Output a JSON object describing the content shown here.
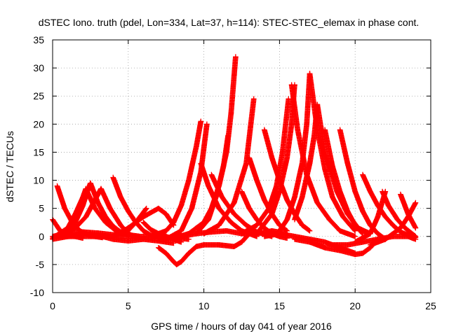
{
  "chart_data": {
    "type": "scatter",
    "title": "dSTEC Iono. truth (pdel, Lon=334, Lat=37, h=114): STEC-STEC_elemax in phase cont.",
    "xlabel": "GPS time / hours of day 041 of year 2016",
    "ylabel": "dSTEC  / TECUs",
    "xlim": [
      0,
      25
    ],
    "ylim": [
      -10,
      35
    ],
    "xticks": [
      0,
      5,
      10,
      15,
      20,
      25
    ],
    "yticks": [
      -10,
      -5,
      0,
      5,
      10,
      15,
      20,
      25,
      30,
      35
    ],
    "xtick_labels": [
      "0",
      "5",
      "10",
      "15",
      "20",
      "25"
    ],
    "ytick_labels": [
      "-10",
      "-5",
      "0",
      "5",
      "10",
      "15",
      "20",
      "25",
      "30",
      "35"
    ],
    "grid": true,
    "marker": "+",
    "color": "#ff0000",
    "series": [
      {
        "x": [
          0.0,
          0.5,
          1.0,
          1.5,
          2.0
        ],
        "y": [
          3.0,
          1.0,
          0.3,
          0.0,
          -0.3
        ]
      },
      {
        "x": [
          0.3,
          0.8,
          1.3,
          1.8,
          2.3,
          2.8,
          3.3
        ],
        "y": [
          9.0,
          5.0,
          2.5,
          1.0,
          0.3,
          0.0,
          -0.2
        ]
      },
      {
        "x": [
          0.0,
          0.8,
          1.5,
          2.0,
          2.3,
          2.5
        ],
        "y": [
          0.0,
          0.5,
          2.5,
          5.5,
          8.0,
          9.5
        ]
      },
      {
        "x": [
          2.5,
          3.0,
          3.5,
          4.0,
          4.5,
          5.0
        ],
        "y": [
          9.5,
          6.0,
          3.5,
          1.8,
          0.8,
          0.2
        ]
      },
      {
        "x": [
          0.0,
          1.0,
          1.5,
          2.0,
          2.2
        ],
        "y": [
          -0.3,
          1.5,
          4.0,
          7.0,
          8.5
        ]
      },
      {
        "x": [
          2.2,
          2.8,
          3.5,
          4.2,
          5.0,
          5.8
        ],
        "y": [
          8.5,
          5.0,
          2.5,
          1.0,
          0.3,
          0.0
        ]
      },
      {
        "x": [
          0.5,
          1.5,
          2.2,
          2.8,
          3.2
        ],
        "y": [
          0.0,
          1.5,
          3.5,
          6.5,
          8.5
        ]
      },
      {
        "x": [
          3.2,
          3.8,
          4.5,
          5.0,
          5.5
        ],
        "y": [
          8.5,
          5.0,
          2.0,
          0.5,
          -0.2
        ]
      },
      {
        "x": [
          4.0,
          4.5,
          5.0,
          5.5,
          6.0,
          6.5,
          7.0,
          7.5
        ],
        "y": [
          10.5,
          7.0,
          4.5,
          2.5,
          1.0,
          0.2,
          -0.2,
          -0.5
        ]
      },
      {
        "x": [
          1.0,
          2.0,
          3.0,
          4.0,
          4.8,
          5.5,
          6.2
        ],
        "y": [
          0.5,
          0.8,
          0.6,
          0.3,
          0.5,
          2.5,
          5.0
        ]
      },
      {
        "x": [
          0.0,
          1.0,
          2.0,
          3.0,
          4.0,
          5.0,
          6.0,
          7.0,
          8.0
        ],
        "y": [
          -0.5,
          0.0,
          0.5,
          0.2,
          -0.5,
          -0.8,
          -0.5,
          -0.8,
          -1.2
        ]
      },
      {
        "x": [
          4.0,
          5.0,
          6.0,
          7.0,
          7.5,
          8.0
        ],
        "y": [
          0.0,
          1.5,
          3.5,
          5.0,
          4.0,
          2.0
        ]
      },
      {
        "x": [
          6.0,
          6.5,
          7.0,
          7.5,
          8.0,
          8.5
        ],
        "y": [
          2.5,
          1.2,
          0.5,
          0.0,
          -0.5,
          -1.0
        ]
      },
      {
        "x": [
          7.0,
          7.5,
          8.0,
          8.2,
          8.5,
          9.0,
          9.5,
          10.0
        ],
        "y": [
          -2.0,
          -3.0,
          -4.5,
          -5.0,
          -4.5,
          -3.0,
          -1.8,
          -1.5
        ]
      },
      {
        "x": [
          10.0,
          11.0,
          12.0,
          12.5,
          13.0
        ],
        "y": [
          -1.5,
          -1.5,
          -1.8,
          -1.0,
          0.5
        ]
      },
      {
        "x": [
          6.5,
          7.5,
          8.0,
          8.5,
          9.0,
          9.5,
          9.8
        ],
        "y": [
          0.0,
          1.0,
          2.5,
          5.5,
          10.0,
          16.0,
          20.5
        ]
      },
      {
        "x": [
          7.5,
          8.5,
          9.2,
          9.8,
          10.2
        ],
        "y": [
          -0.5,
          1.0,
          5.0,
          11.5,
          20.0
        ]
      },
      {
        "x": [
          8.0,
          9.0,
          10.0,
          10.5,
          11.0,
          11.5,
          11.8,
          12.1
        ],
        "y": [
          -0.3,
          0.5,
          2.5,
          5.0,
          9.0,
          15.0,
          22.0,
          32.0
        ]
      },
      {
        "x": [
          9.5,
          10.3,
          10.8,
          11.3,
          11.6
        ],
        "y": [
          0.5,
          3.0,
          7.0,
          12.5,
          18.0
        ]
      },
      {
        "x": [
          10.0,
          11.0,
          12.0,
          12.8,
          13.3
        ],
        "y": [
          0.5,
          2.0,
          6.0,
          13.0,
          24.5
        ]
      },
      {
        "x": [
          9.8,
          10.3,
          11.0,
          11.8,
          12.5,
          13.5
        ],
        "y": [
          13.0,
          9.0,
          5.0,
          2.5,
          1.0,
          0.0
        ]
      },
      {
        "x": [
          10.5,
          11.2,
          12.0,
          12.8,
          13.5,
          14.5
        ],
        "y": [
          11.0,
          7.0,
          4.0,
          2.0,
          0.8,
          0.0
        ]
      },
      {
        "x": [
          8.5,
          9.5,
          10.5,
          11.5,
          12.5,
          13.5,
          14.5,
          15.5
        ],
        "y": [
          0.0,
          0.5,
          0.8,
          1.0,
          0.5,
          0.5,
          1.0,
          0.5
        ]
      },
      {
        "x": [
          12.5,
          13.0,
          13.5,
          14.0,
          14.5,
          15.0,
          15.5
        ],
        "y": [
          8.0,
          5.0,
          3.0,
          1.5,
          0.5,
          0.0,
          -0.3
        ]
      },
      {
        "x": [
          13.0,
          13.5,
          14.0,
          14.5,
          15.0,
          15.5
        ],
        "y": [
          14.0,
          10.0,
          6.5,
          4.0,
          2.0,
          1.0
        ]
      },
      {
        "x": [
          14.0,
          14.5,
          15.0,
          15.5,
          16.0,
          16.5,
          17.0
        ],
        "y": [
          19.0,
          14.0,
          10.0,
          6.5,
          4.0,
          2.0,
          1.0
        ]
      },
      {
        "x": [
          12.5,
          13.5,
          14.3,
          14.8,
          15.2,
          15.6
        ],
        "y": [
          0.5,
          2.0,
          5.0,
          9.0,
          15.0,
          24.5
        ]
      },
      {
        "x": [
          13.5,
          14.5,
          15.0,
          15.5,
          15.8,
          16.0
        ],
        "y": [
          0.5,
          4.0,
          8.0,
          14.0,
          20.0,
          27.0
        ]
      },
      {
        "x": [
          15.8,
          16.2,
          16.8,
          17.5,
          18.3,
          19.0,
          20.0
        ],
        "y": [
          27.0,
          19.0,
          11.0,
          6.0,
          3.0,
          1.0,
          0.0
        ]
      },
      {
        "x": [
          15.0,
          15.5,
          16.0,
          16.5,
          16.8,
          17.0
        ],
        "y": [
          1.0,
          3.0,
          7.0,
          13.0,
          20.0,
          29.0
        ]
      },
      {
        "x": [
          17.0,
          17.5,
          18.0,
          18.5,
          19.2,
          20.0
        ],
        "y": [
          29.0,
          19.0,
          12.0,
          7.0,
          3.5,
          1.0
        ]
      },
      {
        "x": [
          16.0,
          16.5,
          17.0,
          17.3,
          17.5
        ],
        "y": [
          3.0,
          7.0,
          13.0,
          18.0,
          23.5
        ]
      },
      {
        "x": [
          17.5,
          18.0,
          18.8,
          19.5,
          20.2,
          21.0
        ],
        "y": [
          23.5,
          15.0,
          8.0,
          4.0,
          1.5,
          0.5
        ]
      },
      {
        "x": [
          18.0,
          18.5,
          19.0,
          19.5,
          20.0,
          20.5
        ],
        "y": [
          19.0,
          12.5,
          8.0,
          4.5,
          2.0,
          0.5
        ]
      },
      {
        "x": [
          19.0,
          19.5,
          20.0,
          20.5,
          21.0,
          21.5,
          22.0
        ],
        "y": [
          19.0,
          13.0,
          8.0,
          4.5,
          2.0,
          0.5,
          -0.5
        ]
      },
      {
        "x": [
          16.0,
          17.0,
          18.0,
          19.0,
          20.0,
          20.5,
          21.0,
          21.5
        ],
        "y": [
          -0.5,
          -1.0,
          -2.0,
          -2.5,
          -3.2,
          -3.0,
          -2.0,
          -0.5
        ]
      },
      {
        "x": [
          14.0,
          15.0,
          16.0,
          17.0,
          18.0,
          19.0,
          20.0
        ],
        "y": [
          0.0,
          0.5,
          0.0,
          -0.5,
          -1.0,
          -2.0,
          -3.0
        ]
      },
      {
        "x": [
          20.5,
          21.0,
          21.5,
          22.0,
          22.5,
          23.0,
          23.5,
          24.0
        ],
        "y": [
          11.0,
          8.0,
          5.5,
          3.5,
          2.0,
          0.8,
          0.2,
          -0.2
        ]
      },
      {
        "x": [
          21.8,
          22.2,
          22.8,
          23.3,
          24.0
        ],
        "y": [
          8.0,
          5.5,
          3.0,
          1.5,
          0.0
        ]
      },
      {
        "x": [
          20.0,
          21.0,
          21.5,
          22.0
        ],
        "y": [
          -1.0,
          0.5,
          3.5,
          8.0
        ]
      },
      {
        "x": [
          23.0,
          23.5,
          24.0
        ],
        "y": [
          7.5,
          4.0,
          1.5
        ]
      },
      {
        "x": [
          21.0,
          22.0,
          23.0,
          23.5,
          24.0
        ],
        "y": [
          -1.5,
          -0.5,
          1.5,
          3.5,
          6.0
        ]
      },
      {
        "x": [
          18.5,
          19.5,
          20.5,
          21.5,
          22.5,
          23.5,
          24.0
        ],
        "y": [
          -1.5,
          -1.5,
          -1.0,
          -0.5,
          0.0,
          0.0,
          -0.5
        ]
      },
      {
        "x": [
          0.0,
          2.0,
          4.0,
          6.0,
          8.0,
          9.0
        ],
        "y": [
          0.0,
          0.0,
          0.0,
          0.0,
          -0.2,
          -0.5
        ]
      }
    ]
  }
}
